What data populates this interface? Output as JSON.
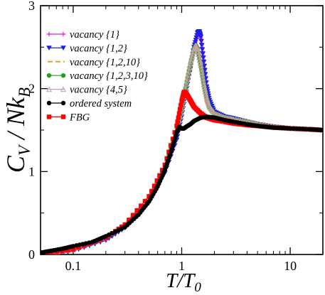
{
  "chart_data": {
    "type": "line",
    "title": "",
    "xlabel": "T/T",
    "xlabel_sub": "0",
    "ylabel": "C",
    "ylabel_sub1": "V",
    "ylabel_mid": " / Nk",
    "ylabel_sub2": "B",
    "xscale": "log",
    "xlim": [
      0.05,
      20
    ],
    "ylim": [
      0,
      3
    ],
    "xticks": [
      0.1,
      1,
      10
    ],
    "xtick_labels": [
      "0.1",
      "1",
      "10"
    ],
    "yticks": [
      0,
      1,
      2,
      3
    ],
    "ytick_labels": [
      "0",
      "1",
      "2",
      "3"
    ],
    "grid": false,
    "legend_position": "top-left",
    "series": [
      {
        "name": "vacancy {1}",
        "color": "#e020e0",
        "marker": "plus",
        "x": [
          0.05,
          0.1,
          0.2,
          0.3,
          0.5,
          0.7,
          0.9,
          1.0,
          1.1,
          1.2,
          1.3,
          1.4,
          1.45,
          1.5,
          1.6,
          1.7,
          1.8,
          2.0,
          2.5,
          3,
          4,
          5,
          7,
          10,
          15,
          20
        ],
        "y": [
          0.0,
          0.05,
          0.18,
          0.33,
          0.65,
          1.0,
          1.4,
          1.68,
          1.98,
          2.25,
          2.5,
          2.66,
          2.68,
          2.6,
          2.3,
          2.0,
          1.85,
          1.72,
          1.66,
          1.64,
          1.6,
          1.57,
          1.54,
          1.52,
          1.51,
          1.5
        ]
      },
      {
        "name": "vacancy {1,2}",
        "color": "#2020e0",
        "marker": "triangle-down",
        "x": [
          0.05,
          0.1,
          0.2,
          0.3,
          0.5,
          0.7,
          0.9,
          1.0,
          1.1,
          1.2,
          1.3,
          1.4,
          1.45,
          1.5,
          1.6,
          1.7,
          1.8,
          2.0,
          2.5,
          3,
          4,
          5,
          7,
          10,
          15,
          20
        ],
        "y": [
          0.0,
          0.04,
          0.17,
          0.32,
          0.63,
          0.98,
          1.38,
          1.66,
          1.96,
          2.24,
          2.5,
          2.67,
          2.69,
          2.62,
          2.32,
          2.02,
          1.86,
          1.72,
          1.66,
          1.64,
          1.6,
          1.57,
          1.54,
          1.52,
          1.51,
          1.5
        ]
      },
      {
        "name": "vacancy {1,2,10}",
        "color": "#f0a020",
        "marker": "none",
        "dashed": true,
        "x": [
          0.05,
          0.1,
          0.2,
          0.3,
          0.5,
          0.7,
          0.9,
          1.0,
          1.1,
          1.2,
          1.3,
          1.35,
          1.4,
          1.5,
          1.6,
          1.7,
          1.8,
          2.0,
          2.5,
          3,
          4,
          5,
          7,
          10,
          15,
          20
        ],
        "y": [
          0.0,
          0.06,
          0.2,
          0.36,
          0.7,
          1.06,
          1.48,
          1.75,
          2.05,
          2.3,
          2.48,
          2.52,
          2.48,
          2.28,
          2.05,
          1.88,
          1.78,
          1.7,
          1.65,
          1.63,
          1.6,
          1.57,
          1.54,
          1.52,
          1.51,
          1.5
        ]
      },
      {
        "name": "vacancy {1,2,3,10}",
        "color": "#20a020",
        "marker": "circle",
        "x": [
          0.05,
          0.1,
          0.2,
          0.3,
          0.5,
          0.7,
          0.9,
          1.0,
          1.1,
          1.2,
          1.3,
          1.35,
          1.4,
          1.5,
          1.6,
          1.7,
          1.8,
          2.0,
          2.5,
          3,
          4,
          5,
          7,
          10,
          15,
          20
        ],
        "y": [
          0.0,
          0.06,
          0.2,
          0.36,
          0.7,
          1.06,
          1.48,
          1.75,
          2.05,
          2.3,
          2.48,
          2.52,
          2.48,
          2.28,
          2.05,
          1.88,
          1.78,
          1.7,
          1.65,
          1.63,
          1.6,
          1.57,
          1.54,
          1.52,
          1.51,
          1.5
        ]
      },
      {
        "name": "vacancy {4,5}",
        "color": "#c8a0a0",
        "marker": "triangle-up",
        "x": [
          0.05,
          0.1,
          0.2,
          0.3,
          0.5,
          0.7,
          0.9,
          1.0,
          1.1,
          1.2,
          1.3,
          1.35,
          1.4,
          1.5,
          1.6,
          1.7,
          1.8,
          2.0,
          2.5,
          3,
          4,
          5,
          7,
          10,
          15,
          20
        ],
        "y": [
          0.0,
          0.06,
          0.2,
          0.36,
          0.7,
          1.06,
          1.48,
          1.75,
          2.05,
          2.3,
          2.48,
          2.52,
          2.48,
          2.28,
          2.05,
          1.88,
          1.78,
          1.7,
          1.65,
          1.63,
          1.6,
          1.57,
          1.54,
          1.52,
          1.51,
          1.5
        ]
      },
      {
        "name": "ordered system",
        "color": "#000000",
        "marker": "circle",
        "x": [
          0.05,
          0.06,
          0.08,
          0.1,
          0.15,
          0.2,
          0.3,
          0.4,
          0.5,
          0.6,
          0.7,
          0.8,
          0.9,
          0.95,
          1.0,
          1.05,
          1.1,
          1.2,
          1.3,
          1.5,
          1.7,
          2.0,
          2.5,
          3,
          4,
          5,
          7,
          10,
          15,
          20
        ],
        "y": [
          0.02,
          0.04,
          0.07,
          0.1,
          0.15,
          0.22,
          0.33,
          0.48,
          0.64,
          0.82,
          1.02,
          1.24,
          1.47,
          1.54,
          1.52,
          1.52,
          1.54,
          1.57,
          1.61,
          1.65,
          1.66,
          1.65,
          1.62,
          1.6,
          1.57,
          1.55,
          1.53,
          1.52,
          1.51,
          1.5
        ]
      },
      {
        "name": "FBG",
        "color": "#ff0000",
        "marker": "square",
        "x": [
          0.05,
          0.1,
          0.2,
          0.3,
          0.5,
          0.7,
          0.9,
          1.0,
          1.05,
          1.1,
          1.2,
          1.3,
          1.5,
          1.7,
          2.0,
          2.5,
          3,
          4,
          5,
          7,
          10,
          15,
          20
        ],
        "y": [
          0.0,
          0.06,
          0.2,
          0.36,
          0.7,
          1.08,
          1.55,
          1.85,
          1.96,
          1.94,
          1.86,
          1.78,
          1.7,
          1.65,
          1.62,
          1.6,
          1.58,
          1.56,
          1.55,
          1.53,
          1.52,
          1.51,
          1.5
        ]
      }
    ]
  }
}
